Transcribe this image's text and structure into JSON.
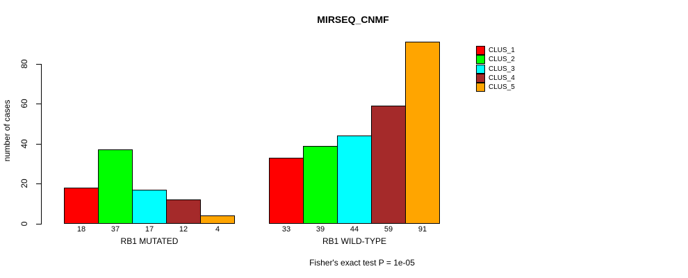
{
  "page": {
    "background_color": "#ffffff",
    "text_color": "#000000"
  },
  "chart_data": {
    "type": "bar",
    "title": "MIRSEQ_CNMF",
    "ylabel": "number of cases",
    "xlabel": "",
    "ylim": [
      0,
      92
    ],
    "yticks": [
      0,
      20,
      40,
      60,
      80
    ],
    "grid": false,
    "bar_borders": true,
    "legend_position": "right-outside",
    "categories": [
      "RB1 MUTATED",
      "RB1 WILD-TYPE"
    ],
    "series": [
      {
        "name": "CLUS_1",
        "color": "#FF0000",
        "values": [
          18,
          33
        ]
      },
      {
        "name": "CLUS_2",
        "color": "#00FF00",
        "values": [
          37,
          39
        ]
      },
      {
        "name": "CLUS_3",
        "color": "#00FFFF",
        "values": [
          17,
          44
        ]
      },
      {
        "name": "CLUS_4",
        "color": "#A52A2A",
        "values": [
          12,
          59
        ]
      },
      {
        "name": "CLUS_5",
        "color": "#FFA500",
        "values": [
          4,
          91
        ]
      }
    ],
    "bar_value_labels": {
      "RB1 MUTATED": [
        18,
        37,
        17,
        12,
        4
      ],
      "RB1 WILD-TYPE": [
        33,
        39,
        44,
        59,
        91
      ]
    },
    "annotation": "Fisher's exact test P = 1e-05",
    "axis_color": "#000000"
  }
}
